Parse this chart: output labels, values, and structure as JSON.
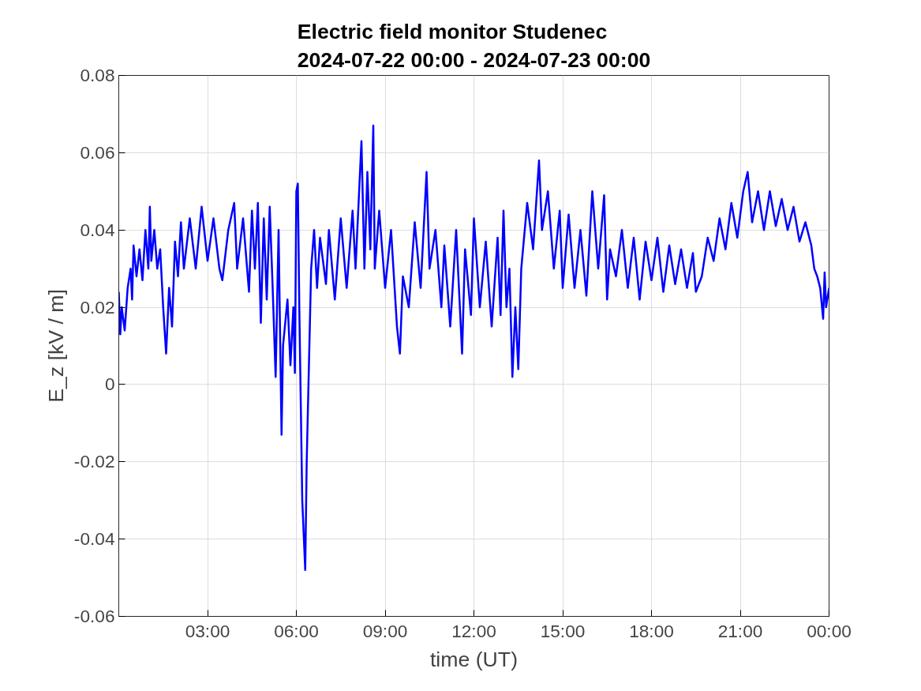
{
  "chart_data": {
    "type": "line",
    "title": "Electric field monitor Studenec\n2024-07-22 00:00 - 2024-07-23 00:00",
    "xlabel": "time (UT)",
    "ylabel": "E_z [kV / m]",
    "xlim": [
      0,
      24
    ],
    "xticks": [
      {
        "value": 3,
        "label": "03:00"
      },
      {
        "value": 6,
        "label": "06:00"
      },
      {
        "value": 9,
        "label": "09:00"
      },
      {
        "value": 12,
        "label": "12:00"
      },
      {
        "value": 15,
        "label": "15:00"
      },
      {
        "value": 18,
        "label": "18:00"
      },
      {
        "value": 21,
        "label": "21:00"
      },
      {
        "value": 24,
        "label": "00:00"
      }
    ],
    "ylim": [
      -0.06,
      0.08
    ],
    "yticks": [
      -0.06,
      -0.04,
      -0.02,
      0,
      0.02,
      0.04,
      0.06,
      0.08
    ],
    "grid": true,
    "marker": "none",
    "line_style": "solid",
    "x": [
      0,
      0.05,
      0.1,
      0.2,
      0.3,
      0.4,
      0.45,
      0.5,
      0.6,
      0.7,
      0.8,
      0.9,
      1.0,
      1.05,
      1.1,
      1.2,
      1.3,
      1.4,
      1.5,
      1.6,
      1.7,
      1.8,
      1.9,
      2.0,
      2.1,
      2.2,
      2.4,
      2.6,
      2.8,
      3.0,
      3.2,
      3.4,
      3.5,
      3.7,
      3.9,
      4.0,
      4.2,
      4.4,
      4.5,
      4.6,
      4.7,
      4.8,
      4.9,
      5.0,
      5.1,
      5.2,
      5.3,
      5.4,
      5.5,
      5.55,
      5.7,
      5.8,
      5.9,
      5.95,
      6.0,
      6.05,
      6.1,
      6.2,
      6.3,
      6.35,
      6.5,
      6.6,
      6.7,
      6.8,
      7.0,
      7.1,
      7.3,
      7.5,
      7.7,
      7.9,
      8.0,
      8.2,
      8.3,
      8.4,
      8.5,
      8.6,
      8.65,
      8.8,
      9.0,
      9.2,
      9.4,
      9.5,
      9.6,
      9.8,
      10.0,
      10.2,
      10.4,
      10.5,
      10.7,
      10.9,
      11.0,
      11.2,
      11.4,
      11.6,
      11.7,
      11.9,
      12.0,
      12.2,
      12.4,
      12.6,
      12.8,
      12.9,
      13.0,
      13.1,
      13.2,
      13.3,
      13.4,
      13.5,
      13.6,
      13.8,
      14.0,
      14.2,
      14.3,
      14.5,
      14.7,
      14.9,
      15.0,
      15.2,
      15.4,
      15.6,
      15.8,
      16.0,
      16.2,
      16.4,
      16.5,
      16.6,
      16.8,
      17.0,
      17.2,
      17.4,
      17.6,
      17.8,
      18.0,
      18.2,
      18.4,
      18.6,
      18.8,
      19.0,
      19.2,
      19.4,
      19.5,
      19.7,
      19.9,
      20.1,
      20.3,
      20.5,
      20.7,
      20.9,
      21.1,
      21.25,
      21.4,
      21.6,
      21.8,
      22.0,
      22.2,
      22.4,
      22.6,
      22.8,
      23.0,
      23.2,
      23.4,
      23.5,
      23.6,
      23.7,
      23.8,
      23.85,
      23.9,
      24.0
    ],
    "series": [
      {
        "color": "#0000ff",
        "values": [
          0.024,
          0.013,
          0.02,
          0.014,
          0.025,
          0.03,
          0.022,
          0.036,
          0.028,
          0.035,
          0.027,
          0.04,
          0.03,
          0.046,
          0.032,
          0.04,
          0.03,
          0.035,
          0.02,
          0.008,
          0.025,
          0.015,
          0.037,
          0.028,
          0.042,
          0.03,
          0.043,
          0.03,
          0.046,
          0.032,
          0.043,
          0.03,
          0.027,
          0.04,
          0.047,
          0.03,
          0.043,
          0.024,
          0.045,
          0.03,
          0.047,
          0.016,
          0.043,
          0.022,
          0.046,
          0.025,
          0.002,
          0.04,
          -0.013,
          0.01,
          0.022,
          0.005,
          0.02,
          0.003,
          0.05,
          0.052,
          0.02,
          -0.03,
          -0.048,
          -0.02,
          0.03,
          0.04,
          0.025,
          0.038,
          0.026,
          0.04,
          0.022,
          0.043,
          0.025,
          0.045,
          0.03,
          0.063,
          0.03,
          0.055,
          0.035,
          0.067,
          0.03,
          0.045,
          0.025,
          0.04,
          0.015,
          0.008,
          0.028,
          0.02,
          0.042,
          0.025,
          0.055,
          0.03,
          0.04,
          0.02,
          0.036,
          0.015,
          0.04,
          0.008,
          0.035,
          0.018,
          0.043,
          0.02,
          0.037,
          0.015,
          0.038,
          0.018,
          0.045,
          0.02,
          0.03,
          0.002,
          0.02,
          0.004,
          0.03,
          0.047,
          0.035,
          0.058,
          0.04,
          0.05,
          0.03,
          0.045,
          0.025,
          0.044,
          0.025,
          0.04,
          0.023,
          0.05,
          0.03,
          0.049,
          0.022,
          0.035,
          0.028,
          0.04,
          0.025,
          0.038,
          0.022,
          0.037,
          0.027,
          0.038,
          0.024,
          0.036,
          0.026,
          0.035,
          0.025,
          0.034,
          0.024,
          0.028,
          0.038,
          0.032,
          0.043,
          0.035,
          0.047,
          0.038,
          0.05,
          0.055,
          0.042,
          0.05,
          0.04,
          0.05,
          0.041,
          0.048,
          0.04,
          0.046,
          0.037,
          0.042,
          0.036,
          0.03,
          0.028,
          0.025,
          0.017,
          0.029,
          0.02,
          0.025
        ]
      }
    ]
  }
}
